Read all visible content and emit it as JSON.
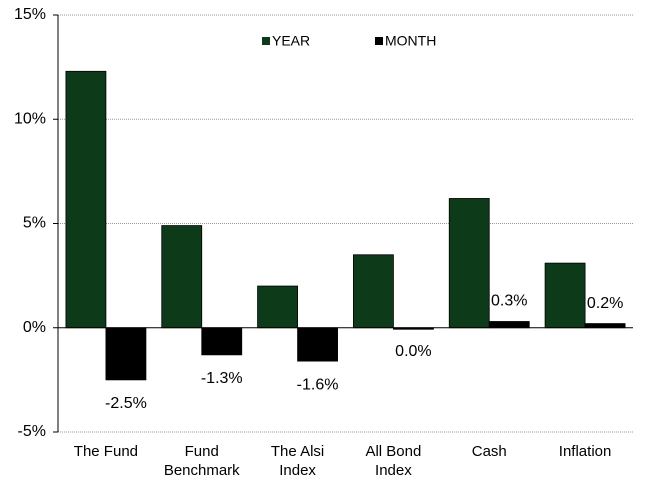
{
  "chart_data": {
    "type": "bar",
    "categories": [
      "The Fund",
      "Fund Benchmark",
      "The Alsi Index",
      "All Bond Index",
      "Cash",
      "Inflation"
    ],
    "series": [
      {
        "name": "YEAR",
        "color": "#0d3a18",
        "values": [
          12.3,
          4.9,
          2.0,
          3.5,
          6.2,
          3.1
        ]
      },
      {
        "name": "MONTH",
        "color": "#000000",
        "values": [
          -2.5,
          -1.3,
          -1.6,
          0.0,
          0.3,
          0.2
        ],
        "value_labels": [
          "-2.5%",
          "-1.3%",
          "-1.6%",
          "0.0%",
          "0.3%",
          "0.2%"
        ]
      }
    ],
    "ylim": [
      -5,
      15
    ],
    "yticks": [
      {
        "value": -5,
        "label": "-5%"
      },
      {
        "value": 0,
        "label": "0%"
      },
      {
        "value": 5,
        "label": "5%"
      },
      {
        "value": 10,
        "label": "10%"
      },
      {
        "value": 15,
        "label": "15%"
      }
    ],
    "grid": true
  }
}
